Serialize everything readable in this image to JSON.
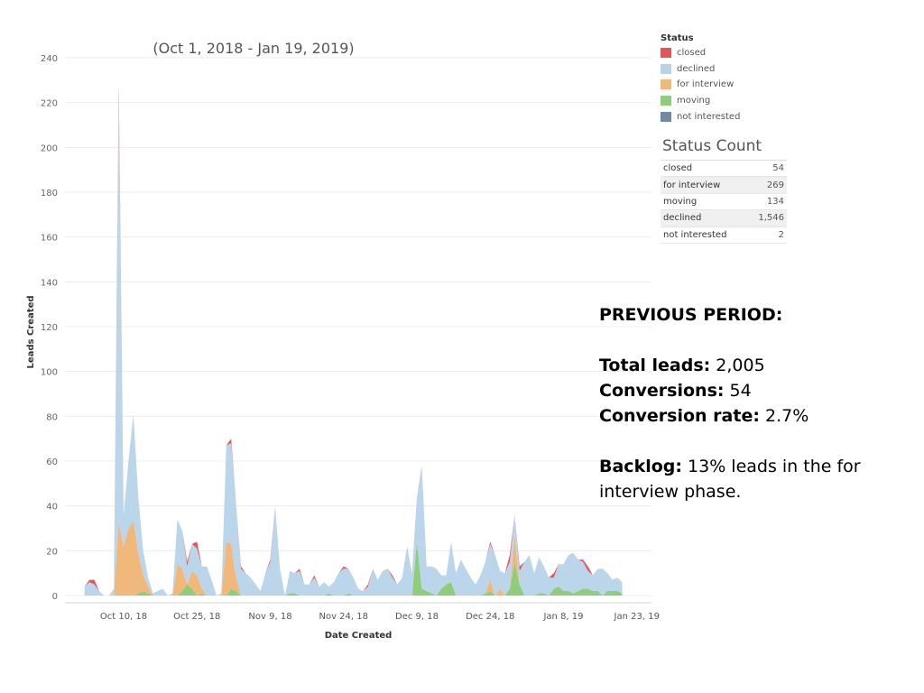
{
  "chart_data": {
    "type": "area",
    "title": "(Oct 1, 2018 - Jan 19, 2019)",
    "xlabel": "Date Created",
    "ylabel": "Leads Created",
    "ylim": [
      0,
      240
    ],
    "y_ticks": [
      0,
      20,
      40,
      60,
      80,
      100,
      120,
      140,
      160,
      180,
      200,
      220,
      240
    ],
    "x_tick_labels": [
      "Oct 10, 18",
      "Oct 25, 18",
      "Nov 9, 18",
      "Nov 24, 18",
      "Dec 9, 18",
      "Dec 24, 18",
      "Jan 8, 19",
      "Jan 23, 19"
    ],
    "x_tick_days": [
      9,
      24,
      39,
      54,
      69,
      84,
      99,
      114
    ],
    "xlim_days": [
      -3,
      117
    ],
    "x_origin_date": "2018-10-01",
    "grid": true,
    "stacking": "stacked",
    "series_order": [
      "moving",
      "for interview",
      "declined",
      "closed"
    ],
    "days": [
      1,
      2,
      3,
      4,
      5,
      6,
      7,
      8,
      9,
      10,
      11,
      12,
      13,
      14,
      15,
      16,
      17,
      18,
      19,
      20,
      21,
      22,
      23,
      24,
      25,
      26,
      27,
      28,
      29,
      30,
      31,
      32,
      33,
      34,
      35,
      36,
      37,
      38,
      39,
      40,
      41,
      42,
      43,
      44,
      45,
      46,
      47,
      48,
      49,
      50,
      51,
      52,
      53,
      54,
      55,
      56,
      57,
      58,
      59,
      60,
      61,
      62,
      63,
      64,
      65,
      66,
      67,
      68,
      69,
      70,
      71,
      72,
      73,
      74,
      75,
      76,
      77,
      78,
      79,
      80,
      81,
      82,
      83,
      84,
      85,
      86,
      87,
      88,
      89,
      90,
      91,
      92,
      93,
      94,
      95,
      96,
      97,
      98,
      99,
      100,
      101,
      102,
      103,
      104,
      105,
      106,
      107,
      108,
      109,
      110,
      111
    ],
    "series": [
      {
        "name": "closed",
        "color": "#e15759",
        "values": [
          0,
          1,
          2,
          0,
          0,
          0,
          0,
          5,
          0,
          0,
          0,
          0,
          0,
          0,
          0,
          0,
          0,
          0,
          0,
          0,
          0,
          2,
          0,
          3,
          0,
          0,
          0,
          0,
          0,
          0,
          2,
          0,
          1,
          0,
          0,
          0,
          0,
          0,
          1,
          0,
          0,
          0,
          0,
          0,
          1,
          0,
          0,
          1,
          0,
          0,
          0,
          0,
          0,
          1,
          0,
          0,
          0,
          0,
          1,
          0,
          0,
          0,
          0,
          1,
          0,
          0,
          0,
          0,
          0,
          0,
          0,
          0,
          0,
          0,
          0,
          0,
          0,
          0,
          0,
          0,
          0,
          0,
          0,
          1,
          0,
          0,
          0,
          3,
          0,
          2,
          0,
          0,
          0,
          0,
          0,
          0,
          2,
          0,
          0,
          0,
          0,
          0,
          1,
          2,
          0,
          0,
          0,
          0,
          0,
          0,
          0
        ]
      },
      {
        "name": "declined",
        "color": "#b7d3ea",
        "values": [
          4,
          6,
          5,
          2,
          0,
          0,
          3,
          190,
          14,
          30,
          48,
          25,
          11,
          4,
          1,
          2,
          3,
          0,
          1,
          20,
          17,
          8,
          12,
          12,
          10,
          13,
          7,
          0,
          1,
          43,
          45,
          33,
          12,
          10,
          8,
          5,
          2,
          10,
          15,
          40,
          12,
          0,
          10,
          9,
          11,
          5,
          5,
          8,
          4,
          6,
          3,
          6,
          10,
          12,
          11,
          8,
          3,
          2,
          4,
          12,
          7,
          11,
          12,
          8,
          5,
          8,
          22,
          10,
          20,
          55,
          11,
          12,
          12,
          6,
          4,
          18,
          10,
          16,
          12,
          8,
          5,
          9,
          14,
          16,
          18,
          8,
          10,
          12,
          9,
          6,
          15,
          18,
          10,
          16,
          12,
          8,
          5,
          10,
          12,
          16,
          18,
          14,
          12,
          8,
          7,
          10,
          12,
          8,
          5,
          6,
          5
        ]
      },
      {
        "name": "for interview",
        "color": "#f1b87c",
        "values": [
          0,
          0,
          0,
          0,
          0,
          0,
          0,
          33,
          22,
          30,
          33,
          18,
          7,
          3,
          0,
          0,
          0,
          0,
          0,
          14,
          10,
          0,
          8,
          9,
          2,
          0,
          0,
          0,
          0,
          24,
          20,
          6,
          0,
          0,
          0,
          0,
          0,
          0,
          0,
          0,
          0,
          0,
          0,
          0,
          0,
          0,
          0,
          0,
          0,
          0,
          0,
          0,
          0,
          0,
          0,
          0,
          0,
          0,
          0,
          0,
          0,
          0,
          0,
          0,
          0,
          0,
          0,
          0,
          0,
          0,
          0,
          0,
          0,
          0,
          0,
          0,
          0,
          0,
          0,
          0,
          0,
          0,
          0,
          5,
          0,
          3,
          0,
          0,
          12,
          0,
          0,
          0,
          0,
          0,
          0,
          0,
          0,
          0,
          0,
          0,
          0,
          0,
          0,
          0,
          0,
          0,
          0,
          0,
          0,
          0,
          0
        ]
      },
      {
        "name": "moving",
        "color": "#8fcd7d",
        "values": [
          0,
          0,
          0,
          0,
          0,
          0,
          0,
          0,
          0,
          0,
          0,
          1,
          2,
          1,
          0,
          0,
          0,
          0,
          0,
          0,
          2,
          5,
          3,
          0,
          1,
          0,
          0,
          0,
          0,
          0,
          3,
          2,
          0,
          0,
          0,
          0,
          0,
          0,
          0,
          0,
          0,
          0,
          1,
          1,
          0,
          0,
          0,
          0,
          0,
          0,
          1,
          0,
          0,
          0,
          1,
          0,
          0,
          0,
          0,
          0,
          0,
          0,
          0,
          0,
          0,
          0,
          0,
          0,
          24,
          3,
          2,
          1,
          0,
          3,
          5,
          6,
          0,
          0,
          0,
          0,
          0,
          0,
          1,
          2,
          0,
          0,
          0,
          3,
          15,
          5,
          0,
          0,
          0,
          1,
          1,
          0,
          3,
          4,
          2,
          2,
          1,
          2,
          3,
          3,
          2,
          2,
          0,
          2,
          2,
          2,
          1
        ]
      }
    ]
  },
  "legend": {
    "title": "Status",
    "items": [
      {
        "label": "closed",
        "color": "#e15759"
      },
      {
        "label": "declined",
        "color": "#b7d3ea"
      },
      {
        "label": "for interview",
        "color": "#f1b87c"
      },
      {
        "label": "moving",
        "color": "#8fcd7d"
      },
      {
        "label": "not interested",
        "color": "#6f8aa6"
      }
    ]
  },
  "status_count": {
    "title": "Status Count",
    "rows": [
      {
        "label": "closed",
        "value": "54"
      },
      {
        "label": "for interview",
        "value": "269"
      },
      {
        "label": "moving",
        "value": "134"
      },
      {
        "label": "declined",
        "value": "1,546"
      },
      {
        "label": "not interested",
        "value": "2"
      }
    ]
  },
  "previous_period": {
    "heading": "PREVIOUS PERIOD:",
    "total_leads_label": "Total leads:",
    "total_leads_value": "2,005",
    "conversions_label": "Conversions:",
    "conversions_value": "54",
    "conversion_rate_label": "Conversion rate:",
    "conversion_rate_value": "2.7%",
    "backlog_label": "Backlog:",
    "backlog_text": "13% leads in the for interview phase."
  }
}
